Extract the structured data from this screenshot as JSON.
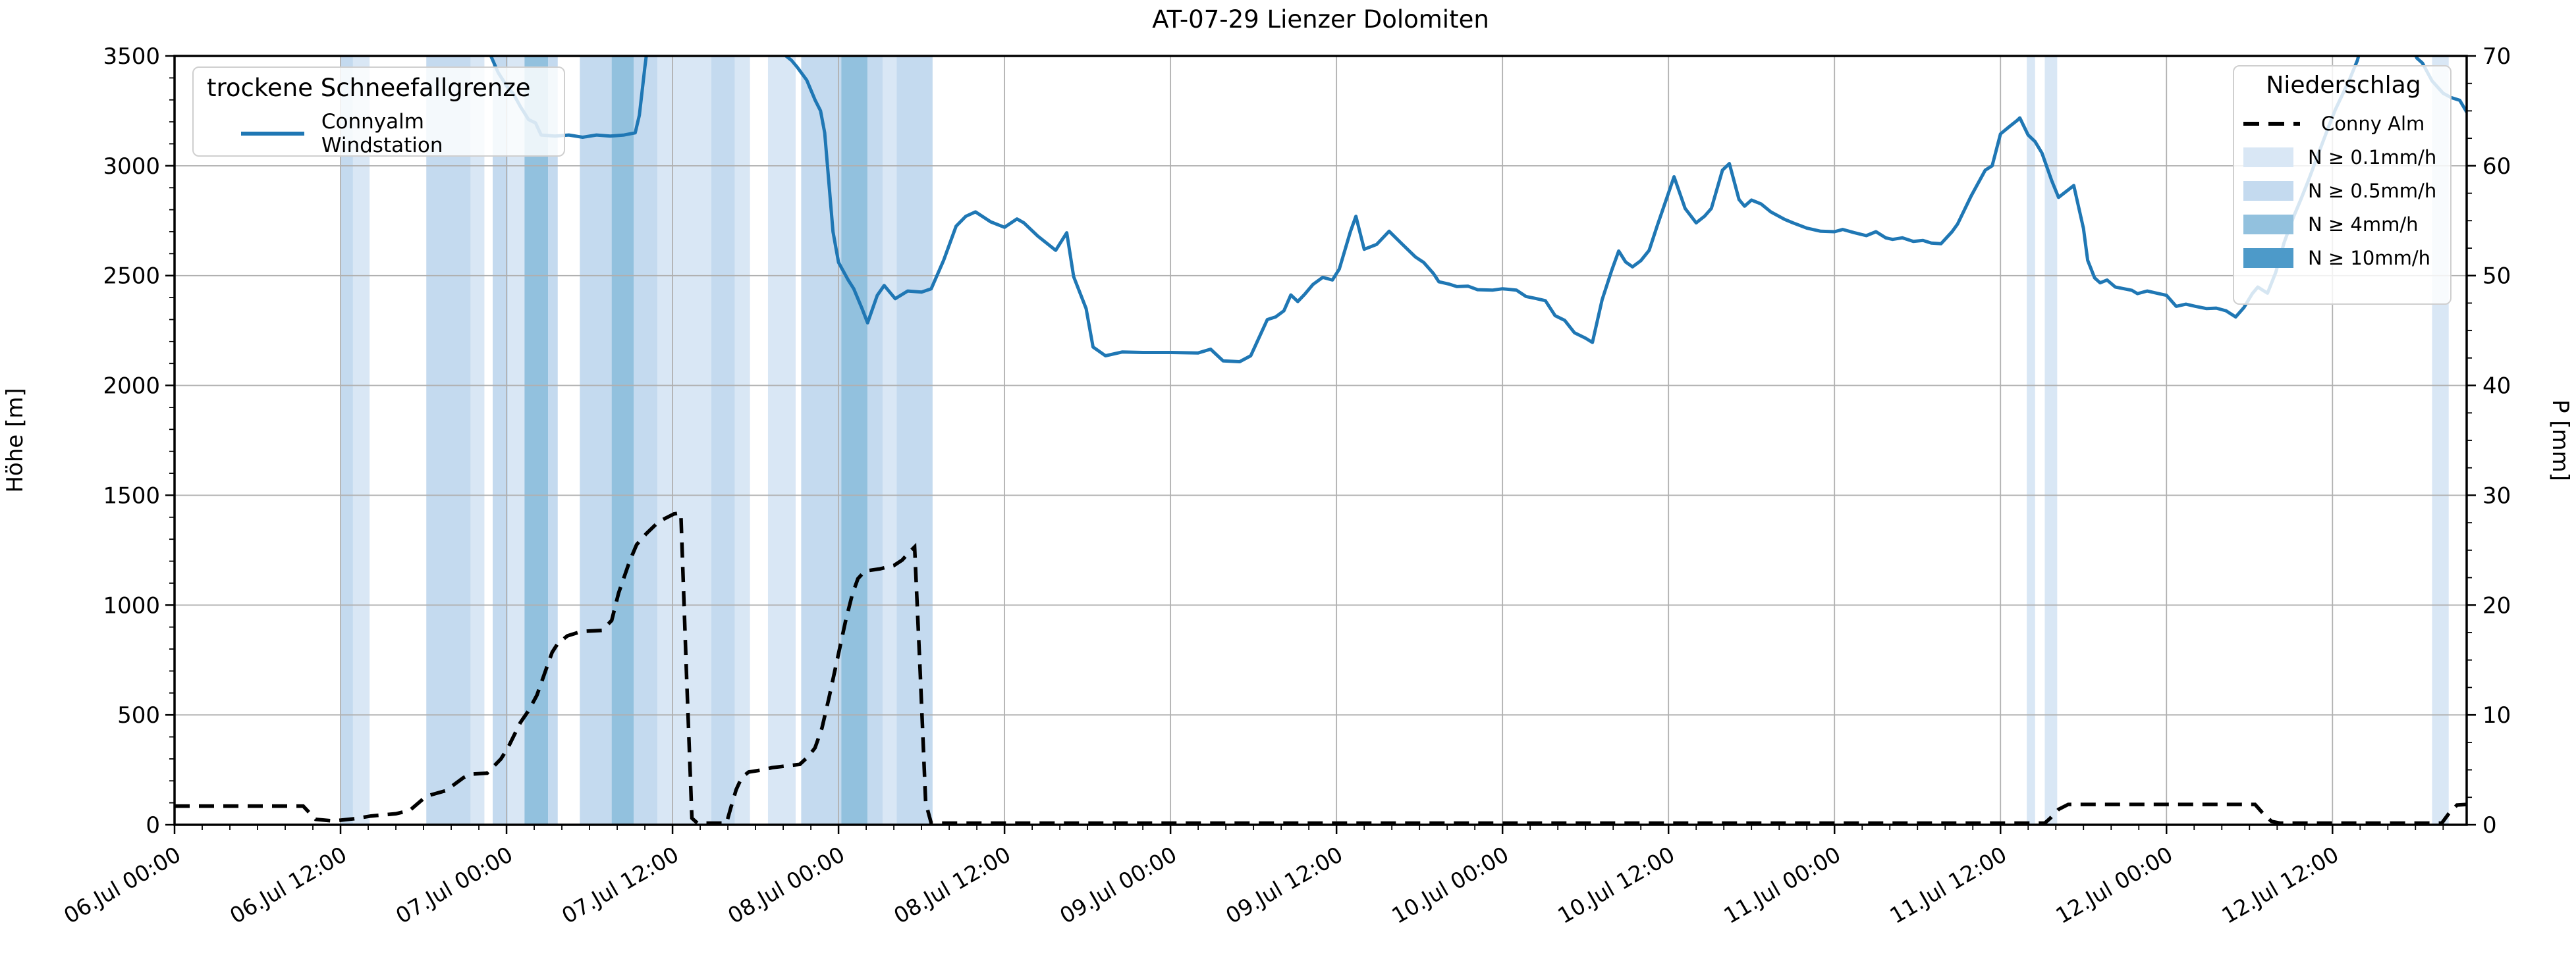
{
  "title": "AT-07-29 Lienzer Dolomiten",
  "legend_snowline": {
    "title": "trockene Schneefallgrenze",
    "item": "Connyalm Windstation"
  },
  "legend_precip": {
    "title": "Niederschlag",
    "dashed_item": "Conny Alm"
  },
  "chart_data": {
    "type": "line",
    "title": "AT-07-29 Lienzer Dolomiten",
    "grid": true,
    "colors": {
      "snowline": "#1f77b4",
      "precip_line": "#000000",
      "grid": "#b0b0b0",
      "spine": "#000000"
    },
    "x_axis": {
      "domain_hours": [
        0,
        165.7
      ],
      "major_tick_hours": [
        0,
        12,
        24,
        36,
        48,
        60,
        72,
        84,
        96,
        108,
        120,
        132,
        144,
        156
      ],
      "minor_step_hours": 2,
      "tick_labels": [
        "06.Jul 00:00",
        "06.Jul 12:00",
        "07.Jul 00:00",
        "07.Jul 12:00",
        "08.Jul 00:00",
        "08.Jul 12:00",
        "09.Jul 00:00",
        "09.Jul 12:00",
        "10.Jul 00:00",
        "10.Jul 12:00",
        "11.Jul 00:00",
        "11.Jul 12:00",
        "12.Jul 00:00",
        "12.Jul 12:00"
      ]
    },
    "y_left": {
      "label": "Höhe [m]",
      "min": 0,
      "max": 3500,
      "tick_step": 500,
      "minor_step": 100,
      "tick_labels": [
        "0",
        "500",
        "1000",
        "1500",
        "2000",
        "2500",
        "3000",
        "3500"
      ]
    },
    "y_right": {
      "label": "P [mm]",
      "min": 0,
      "max": 70,
      "tick_step": 10,
      "minor_step": 2.5,
      "tick_labels": [
        "0",
        "10",
        "20",
        "30",
        "40",
        "50",
        "60",
        "70"
      ]
    },
    "series": [
      {
        "name": "Connyalm Windstation",
        "axis": "left",
        "style": "solid",
        "color": "#1f77b4",
        "points": [
          [
            22.8,
            3510
          ],
          [
            23.4,
            3424
          ],
          [
            24.1,
            3355
          ],
          [
            24.5,
            3327
          ],
          [
            25.0,
            3270
          ],
          [
            25.6,
            3210
          ],
          [
            26.1,
            3195
          ],
          [
            26.5,
            3140
          ],
          [
            27.5,
            3135
          ],
          [
            28.5,
            3140
          ],
          [
            29.5,
            3130
          ],
          [
            30.5,
            3140
          ],
          [
            31.5,
            3135
          ],
          [
            32.5,
            3140
          ],
          [
            33.3,
            3150
          ],
          [
            33.6,
            3230
          ],
          [
            34.0,
            3450
          ],
          [
            34.2,
            3550
          ],
          [
            43.9,
            3550
          ],
          [
            44.2,
            3500
          ],
          [
            44.6,
            3480
          ],
          [
            45.0,
            3450
          ],
          [
            45.7,
            3390
          ],
          [
            46.3,
            3300
          ],
          [
            46.7,
            3250
          ],
          [
            47.0,
            3150
          ],
          [
            47.6,
            2700
          ],
          [
            48.0,
            2560
          ],
          [
            48.7,
            2480
          ],
          [
            49.1,
            2440
          ],
          [
            49.7,
            2350
          ],
          [
            50.1,
            2285
          ],
          [
            50.8,
            2410
          ],
          [
            51.3,
            2455
          ],
          [
            52.1,
            2395
          ],
          [
            53.0,
            2430
          ],
          [
            54.0,
            2425
          ],
          [
            54.7,
            2440
          ],
          [
            55.6,
            2570
          ],
          [
            56.5,
            2725
          ],
          [
            57.2,
            2770
          ],
          [
            57.9,
            2790
          ],
          [
            59.0,
            2745
          ],
          [
            60.0,
            2720
          ],
          [
            60.9,
            2758
          ],
          [
            61.4,
            2740
          ],
          [
            62.4,
            2680
          ],
          [
            63.4,
            2630
          ],
          [
            63.7,
            2615
          ],
          [
            64.5,
            2695
          ],
          [
            65.0,
            2495
          ],
          [
            65.9,
            2350
          ],
          [
            66.4,
            2175
          ],
          [
            67.3,
            2135
          ],
          [
            68.5,
            2152
          ],
          [
            70,
            2150
          ],
          [
            72,
            2150
          ],
          [
            74,
            2148
          ],
          [
            74.9,
            2165
          ],
          [
            75.8,
            2112
          ],
          [
            77,
            2108
          ],
          [
            77.8,
            2135
          ],
          [
            79,
            2300
          ],
          [
            79.6,
            2312
          ],
          [
            80.2,
            2340
          ],
          [
            80.7,
            2412
          ],
          [
            81.2,
            2382
          ],
          [
            81.7,
            2415
          ],
          [
            82.3,
            2460
          ],
          [
            83,
            2492
          ],
          [
            83.7,
            2480
          ],
          [
            84.2,
            2530
          ],
          [
            85,
            2700
          ],
          [
            85.4,
            2770
          ],
          [
            86,
            2620
          ],
          [
            86.9,
            2642
          ],
          [
            87.8,
            2702
          ],
          [
            88.8,
            2640
          ],
          [
            89.7,
            2585
          ],
          [
            90.3,
            2560
          ],
          [
            91,
            2510
          ],
          [
            91.4,
            2472
          ],
          [
            92.1,
            2462
          ],
          [
            92.7,
            2450
          ],
          [
            93.5,
            2452
          ],
          [
            94.2,
            2436
          ],
          [
            95.3,
            2434
          ],
          [
            96,
            2440
          ],
          [
            97,
            2434
          ],
          [
            97.7,
            2405
          ],
          [
            98.4,
            2396
          ],
          [
            99.1,
            2386
          ],
          [
            99.8,
            2318
          ],
          [
            100.5,
            2296
          ],
          [
            101.2,
            2240
          ],
          [
            102,
            2215
          ],
          [
            102.5,
            2196
          ],
          [
            103.2,
            2390
          ],
          [
            103.9,
            2525
          ],
          [
            104.4,
            2612
          ],
          [
            104.9,
            2562
          ],
          [
            105.4,
            2540
          ],
          [
            106,
            2568
          ],
          [
            106.6,
            2615
          ],
          [
            107.2,
            2730
          ],
          [
            108,
            2876
          ],
          [
            108.4,
            2950
          ],
          [
            109.2,
            2806
          ],
          [
            110,
            2740
          ],
          [
            110.6,
            2770
          ],
          [
            111.1,
            2806
          ],
          [
            111.9,
            2980
          ],
          [
            112.4,
            3010
          ],
          [
            113.1,
            2846
          ],
          [
            113.5,
            2816
          ],
          [
            114,
            2844
          ],
          [
            114.7,
            2826
          ],
          [
            115.4,
            2790
          ],
          [
            116.4,
            2756
          ],
          [
            117,
            2740
          ],
          [
            118,
            2716
          ],
          [
            119,
            2702
          ],
          [
            120,
            2700
          ],
          [
            120.6,
            2710
          ],
          [
            121.4,
            2696
          ],
          [
            122.3,
            2682
          ],
          [
            123,
            2700
          ],
          [
            123.7,
            2672
          ],
          [
            124.2,
            2665
          ],
          [
            124.9,
            2672
          ],
          [
            125.7,
            2656
          ],
          [
            126.4,
            2660
          ],
          [
            127,
            2648
          ],
          [
            127.7,
            2645
          ],
          [
            128.5,
            2700
          ],
          [
            128.9,
            2735
          ],
          [
            129.9,
            2865
          ],
          [
            130.9,
            2980
          ],
          [
            131.4,
            3000
          ],
          [
            132,
            3145
          ],
          [
            132.6,
            3176
          ],
          [
            133.2,
            3206
          ],
          [
            133.4,
            3218
          ],
          [
            134,
            3140
          ],
          [
            134.5,
            3110
          ],
          [
            135,
            3058
          ],
          [
            135.7,
            2933
          ],
          [
            136.2,
            2856
          ],
          [
            137.3,
            2910
          ],
          [
            138,
            2715
          ],
          [
            138.3,
            2570
          ],
          [
            138.8,
            2490
          ],
          [
            139.2,
            2467
          ],
          [
            139.7,
            2480
          ],
          [
            140.3,
            2448
          ],
          [
            141.5,
            2433
          ],
          [
            141.9,
            2418
          ],
          [
            142.6,
            2430
          ],
          [
            143.3,
            2420
          ],
          [
            144,
            2410
          ],
          [
            144.7,
            2360
          ],
          [
            145.4,
            2370
          ],
          [
            146.1,
            2360
          ],
          [
            146.9,
            2350
          ],
          [
            147.6,
            2352
          ],
          [
            148.3,
            2340
          ],
          [
            149,
            2312
          ],
          [
            149.6,
            2355
          ],
          [
            150.2,
            2418
          ],
          [
            150.6,
            2448
          ],
          [
            151.3,
            2420
          ],
          [
            151.9,
            2515
          ],
          [
            152.5,
            2650
          ],
          [
            153.2,
            2770
          ],
          [
            153.7,
            2845
          ],
          [
            154.3,
            2940
          ],
          [
            155,
            3058
          ],
          [
            155.7,
            3175
          ],
          [
            156.2,
            3255
          ],
          [
            157.2,
            3388
          ],
          [
            157.8,
            3480
          ],
          [
            158.1,
            3550
          ],
          [
            161.7,
            3550
          ],
          [
            162.1,
            3490
          ],
          [
            162.5,
            3468
          ],
          [
            163.2,
            3386
          ],
          [
            164,
            3330
          ],
          [
            164.6,
            3310
          ],
          [
            165.2,
            3298
          ],
          [
            165.7,
            3245
          ]
        ]
      },
      {
        "name": "Conny Alm",
        "axis": "right",
        "style": "dashed",
        "color": "#000000",
        "points": [
          [
            0,
            1.7
          ],
          [
            9.3,
            1.7
          ],
          [
            10.2,
            0.5
          ],
          [
            11.5,
            0.35
          ],
          [
            13,
            0.55
          ],
          [
            14.2,
            0.8
          ],
          [
            16,
            1.0
          ],
          [
            17,
            1.3
          ],
          [
            18.2,
            2.6
          ],
          [
            19.6,
            3.1
          ],
          [
            20.9,
            4.3
          ],
          [
            21.4,
            4.6
          ],
          [
            22.6,
            4.7
          ],
          [
            23.6,
            6.0
          ],
          [
            24.1,
            7.0
          ],
          [
            25,
            9.3
          ],
          [
            25.6,
            10.4
          ],
          [
            26.2,
            11.8
          ],
          [
            26.9,
            14.3
          ],
          [
            27.3,
            15.7
          ],
          [
            27.7,
            16.5
          ],
          [
            28.4,
            17.2
          ],
          [
            29.4,
            17.6
          ],
          [
            30.9,
            17.7
          ],
          [
            31.6,
            18.6
          ],
          [
            32.1,
            21.1
          ],
          [
            32.9,
            24.0
          ],
          [
            33.4,
            25.5
          ],
          [
            34.1,
            26.5
          ],
          [
            35,
            27.6
          ],
          [
            36.1,
            28.3
          ],
          [
            36.6,
            28.4
          ],
          [
            37.0,
            14
          ],
          [
            37.4,
            0.6
          ],
          [
            37.8,
            0.15
          ],
          [
            39.9,
            0.15
          ],
          [
            40.2,
            1.5
          ],
          [
            40.6,
            3.2
          ],
          [
            41.0,
            4.3
          ],
          [
            41.5,
            4.8
          ],
          [
            42.5,
            5.0
          ],
          [
            43.2,
            5.2
          ],
          [
            44.5,
            5.4
          ],
          [
            45.2,
            5.5
          ],
          [
            45.8,
            6.2
          ],
          [
            46.3,
            7.0
          ],
          [
            46.8,
            8.8
          ],
          [
            47.3,
            11.5
          ],
          [
            47.9,
            15.0
          ],
          [
            48.5,
            18.5
          ],
          [
            49.0,
            21.0
          ],
          [
            49.4,
            22.4
          ],
          [
            49.9,
            23.1
          ],
          [
            51,
            23.3
          ],
          [
            52,
            23.6
          ],
          [
            52.6,
            24.1
          ],
          [
            53.1,
            24.8
          ],
          [
            53.5,
            25.3
          ],
          [
            53.9,
            14
          ],
          [
            54.3,
            2.0
          ],
          [
            54.7,
            0.15
          ],
          [
            135.2,
            0.15
          ],
          [
            135.6,
            0.6
          ],
          [
            136.2,
            1.4
          ],
          [
            136.9,
            1.85
          ],
          [
            150.4,
            1.85
          ],
          [
            151.0,
            1.0
          ],
          [
            151.6,
            0.3
          ],
          [
            152.2,
            0.15
          ],
          [
            163.9,
            0.15
          ],
          [
            164.4,
            1.0
          ],
          [
            165.0,
            1.8
          ],
          [
            165.7,
            1.85
          ]
        ]
      }
    ],
    "precip_bands": {
      "levels": [
        {
          "key": "0.1",
          "label": "N ≥ 0.1mm/h",
          "color": "#d9e7f5"
        },
        {
          "key": "0.5",
          "label": "N ≥ 0.5mm/h",
          "color": "#c4daef"
        },
        {
          "key": "4",
          "label": "N ≥ 4mm/h",
          "color": "#92c1de"
        },
        {
          "key": "10",
          "label": "N ≥ 10mm/h",
          "color": "#4d9ac9"
        }
      ],
      "spans": [
        [
          12.0,
          12.9,
          "0.5"
        ],
        [
          12.9,
          14.1,
          "0.1"
        ],
        [
          18.2,
          21.4,
          "0.5"
        ],
        [
          21.4,
          22.4,
          "0.1"
        ],
        [
          23.0,
          24.1,
          "0.5"
        ],
        [
          24.1,
          25.3,
          "0.1"
        ],
        [
          25.3,
          27.0,
          "4"
        ],
        [
          27.0,
          27.7,
          "0.5"
        ],
        [
          29.3,
          31.6,
          "0.5"
        ],
        [
          31.6,
          33.2,
          "4"
        ],
        [
          33.2,
          34.9,
          "0.5"
        ],
        [
          34.9,
          38.8,
          "0.1"
        ],
        [
          38.8,
          40.5,
          "0.5"
        ],
        [
          40.5,
          41.6,
          "0.1"
        ],
        [
          42.9,
          44.9,
          "0.1"
        ],
        [
          45.3,
          48.2,
          "0.5"
        ],
        [
          48.2,
          50.1,
          "4"
        ],
        [
          50.1,
          51.2,
          "0.5"
        ],
        [
          51.2,
          52.2,
          "0.1"
        ],
        [
          52.2,
          54.8,
          "0.5"
        ],
        [
          133.9,
          134.5,
          "0.1"
        ],
        [
          135.2,
          136.1,
          "0.1"
        ],
        [
          163.2,
          164.4,
          "0.1"
        ]
      ]
    }
  }
}
